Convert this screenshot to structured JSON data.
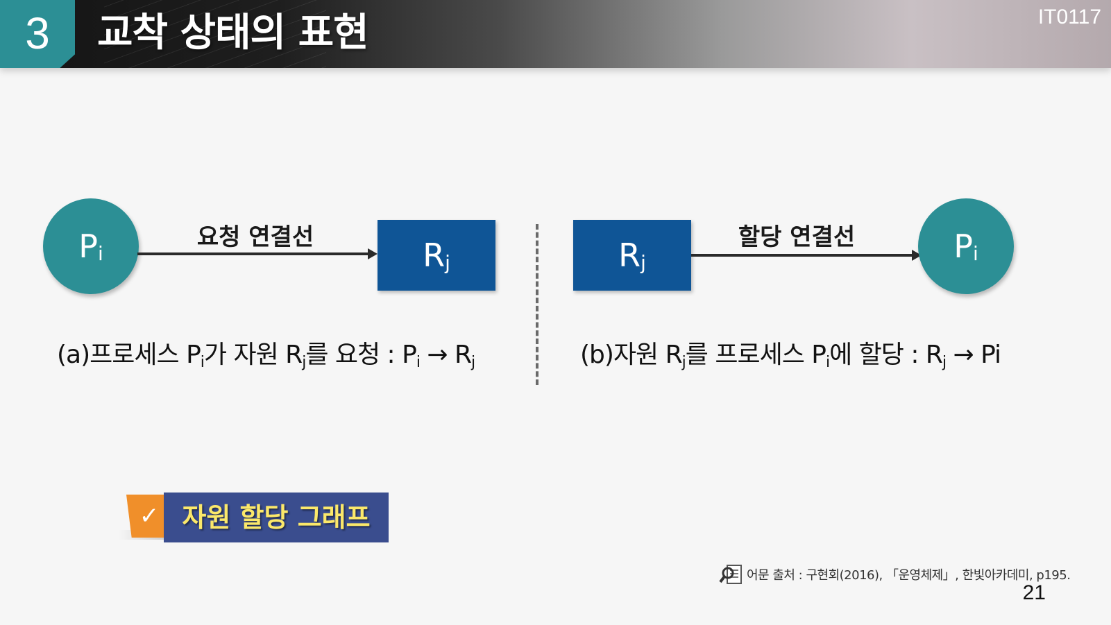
{
  "header": {
    "section_number": "3",
    "title": "교착 상태의 표현",
    "course_code": "IT0117"
  },
  "diagram_a": {
    "process_node": {
      "symbol": "P",
      "subscript": "i"
    },
    "edge_label": "요청 연결선",
    "resource_node": {
      "symbol": "R",
      "subscript": "j"
    },
    "caption": {
      "prefix": "(a)프로세스 P",
      "sub1": "i",
      "mid1": "가 자원 R",
      "sub2": "j",
      "mid2": "를 요청 : P",
      "sub3": "i",
      "mid3": " → R",
      "sub4": "j"
    }
  },
  "diagram_b": {
    "resource_node": {
      "symbol": "R",
      "subscript": "j"
    },
    "edge_label": "할당 연결선",
    "process_node": {
      "symbol": "P",
      "subscript": "i"
    },
    "caption": {
      "prefix": "(b)자원 R",
      "sub1": "j",
      "mid1": "를 프로세스 P",
      "sub2": "i",
      "mid2": "에 할당 : R",
      "sub3": "j",
      "mid3": " → Pi"
    }
  },
  "badge": {
    "label": "자원 할당 그래프"
  },
  "footer": {
    "source": "어문 출처 : 구현회(2016), 「운영체제」, 한빛아카데미, p195.",
    "page_number": "21"
  },
  "colors": {
    "teal": "#2c8f95",
    "blue": "#0f5596",
    "badge_bg": "#3a4d8e",
    "badge_text": "#fbe86a",
    "badge_flag": "#f08f2a"
  },
  "icons": [
    "magnifier-document-icon",
    "checkmark-icon"
  ]
}
